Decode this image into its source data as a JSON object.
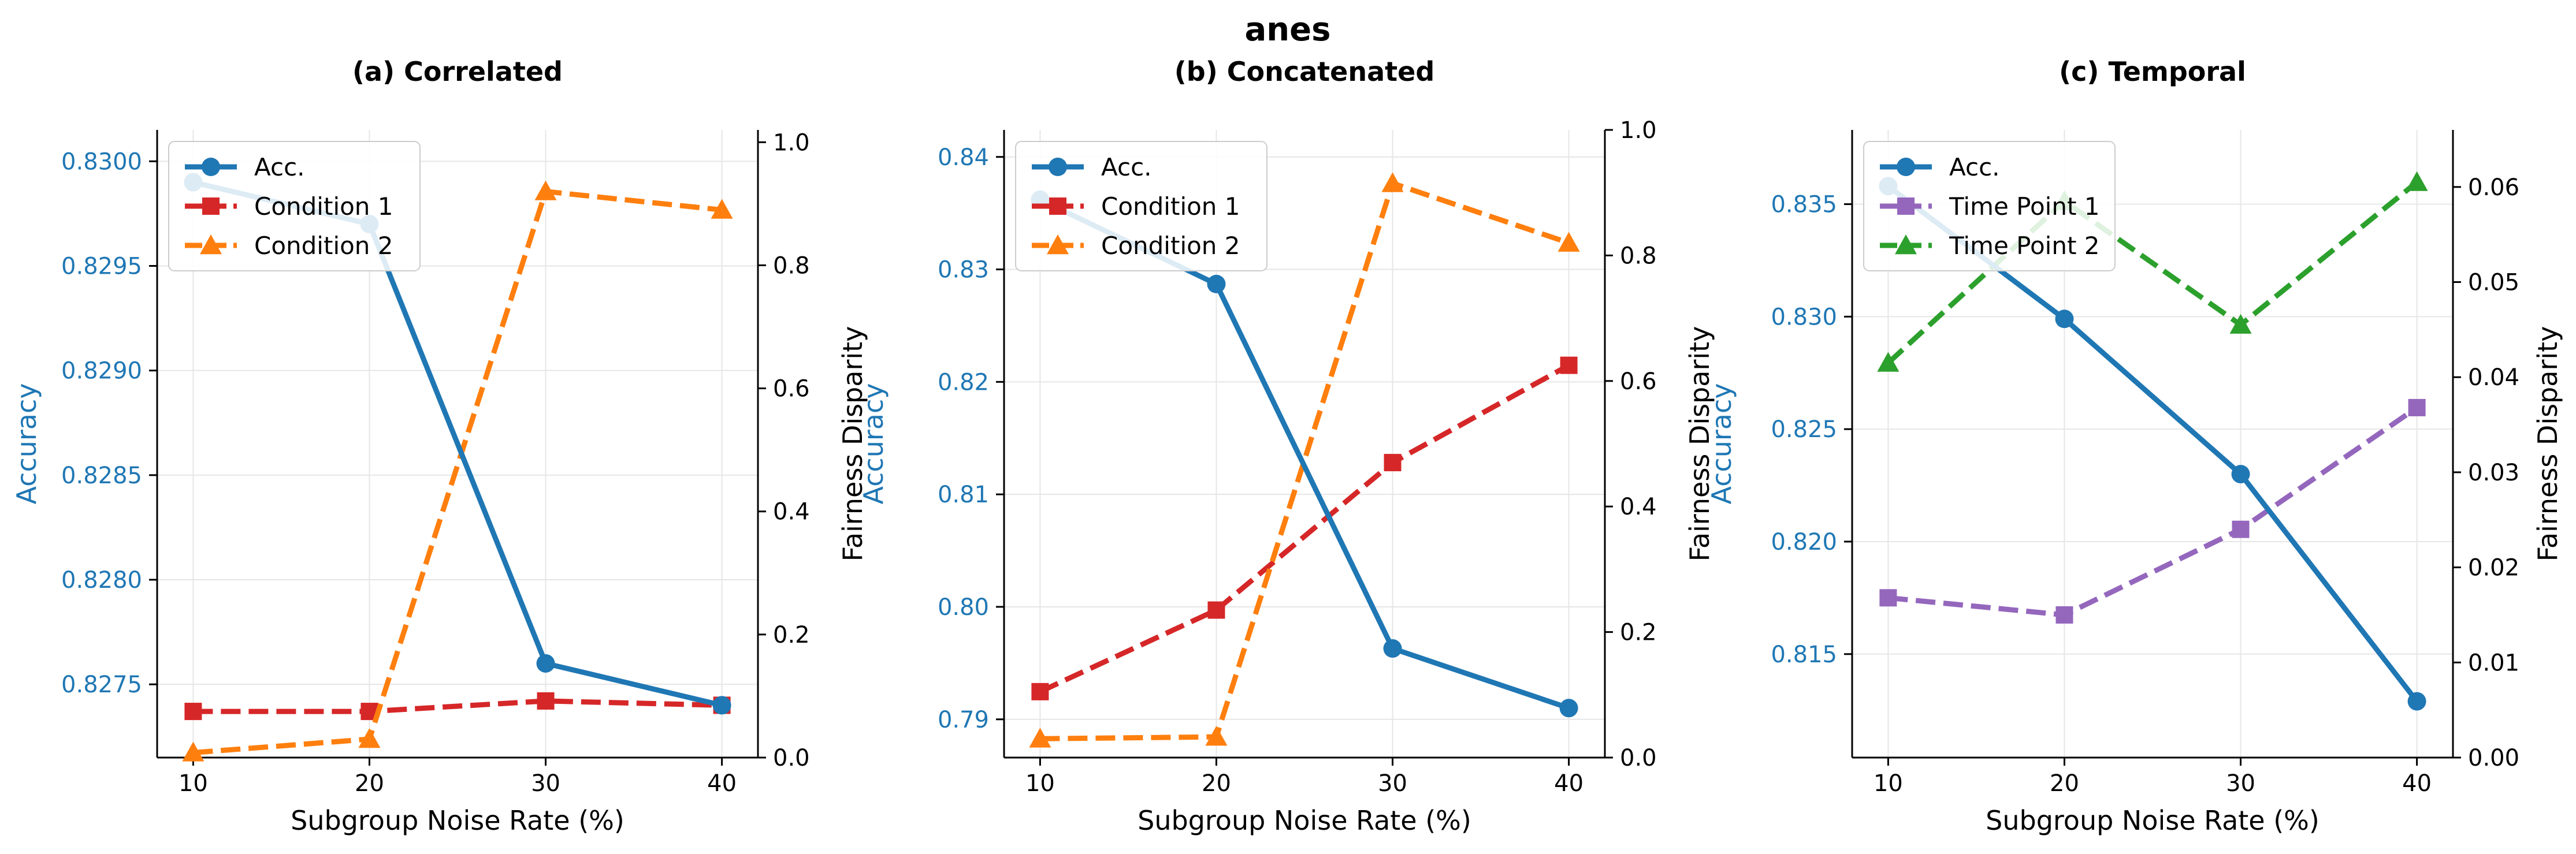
{
  "figure_title": "anes",
  "colors": {
    "accuracy": "#1f77b4",
    "condition1": "#d62728",
    "condition2": "#ff7f0e",
    "timepoint1": "#9467bd",
    "timepoint2": "#2ca02c",
    "grid": "#e6e6e6",
    "axis": "#000000"
  },
  "chart_data": [
    {
      "type": "line",
      "title": "(a) Correlated",
      "xlabel": "Subgroup Noise Rate (%)",
      "ylabel": "Accuracy",
      "y2label": "Fairness Disparity",
      "x": [
        10,
        20,
        30,
        40
      ],
      "x_ticks": [
        10,
        20,
        30,
        40
      ],
      "ylim": [
        82.715,
        83.015
      ],
      "y_ticks": [
        82.75,
        82.8,
        82.85,
        82.9,
        82.95,
        83.0
      ],
      "y_tick_labels": [
        "0.8275",
        "0.8280",
        "0.8285",
        "0.8290",
        "0.8295",
        "0.8300"
      ],
      "y2lim": [
        0.0,
        1.02
      ],
      "y2_ticks": [
        0.0,
        0.2,
        0.4,
        0.6,
        0.8,
        1.0
      ],
      "y2_tick_labels": [
        "0.0",
        "0.2",
        "0.4",
        "0.6",
        "0.8",
        "1.0"
      ],
      "legend_position": "top-left",
      "grid": true,
      "series": [
        {
          "name": "Acc.",
          "axis": "left",
          "color_key": "accuracy",
          "marker": "circle",
          "dashed": false,
          "values": [
            82.99,
            82.97,
            82.76,
            82.74
          ]
        },
        {
          "name": "Condition 1",
          "axis": "right",
          "color_key": "condition1",
          "marker": "square",
          "dashed": true,
          "values": [
            0.075,
            0.075,
            0.092,
            0.085
          ]
        },
        {
          "name": "Condition 2",
          "axis": "right",
          "color_key": "condition2",
          "marker": "triangle",
          "dashed": true,
          "values": [
            0.008,
            0.03,
            0.92,
            0.89
          ]
        }
      ]
    },
    {
      "type": "line",
      "title": "(b) Concatenated",
      "xlabel": "Subgroup Noise Rate (%)",
      "ylabel": "Accuracy",
      "y2label": "Fairness Disparity",
      "x": [
        10,
        20,
        30,
        40
      ],
      "x_ticks": [
        10,
        20,
        30,
        40
      ],
      "ylim": [
        78.66,
        84.24
      ],
      "y_ticks": [
        79,
        80,
        81,
        82,
        83,
        84
      ],
      "y_tick_labels": [
        "0.79",
        "0.80",
        "0.81",
        "0.82",
        "0.83",
        "0.84"
      ],
      "y2lim": [
        0.0,
        1.0
      ],
      "y2_ticks": [
        0.0,
        0.2,
        0.4,
        0.6,
        0.8,
        1.0
      ],
      "y2_tick_labels": [
        "0.0",
        "0.2",
        "0.4",
        "0.6",
        "0.8",
        "1.0"
      ],
      "legend_position": "top-left",
      "grid": true,
      "series": [
        {
          "name": "Acc.",
          "axis": "left",
          "color_key": "accuracy",
          "marker": "circle",
          "dashed": false,
          "values": [
            83.62,
            82.87,
            79.63,
            79.1
          ]
        },
        {
          "name": "Condition 1",
          "axis": "right",
          "color_key": "condition1",
          "marker": "square",
          "dashed": true,
          "values": [
            0.105,
            0.235,
            0.47,
            0.625
          ]
        },
        {
          "name": "Condition 2",
          "axis": "right",
          "color_key": "condition2",
          "marker": "triangle",
          "dashed": true,
          "values": [
            0.03,
            0.033,
            0.915,
            0.82
          ]
        }
      ]
    },
    {
      "type": "line",
      "title": "(c) Temporal",
      "xlabel": "Subgroup Noise Rate (%)",
      "ylabel": "Accuracy",
      "y2label": "Fairness Disparity",
      "x": [
        10,
        20,
        30,
        40
      ],
      "x_ticks": [
        10,
        20,
        30,
        40
      ],
      "ylim": [
        81.04,
        83.83
      ],
      "y_ticks": [
        81.5,
        82.0,
        82.5,
        83.0,
        83.5
      ],
      "y_tick_labels": [
        "0.815",
        "0.820",
        "0.825",
        "0.830",
        "0.835"
      ],
      "y2lim": [
        0.0,
        0.066
      ],
      "y2_ticks": [
        0.0,
        0.01,
        0.02,
        0.03,
        0.04,
        0.05,
        0.06
      ],
      "y2_tick_labels": [
        "0.00",
        "0.01",
        "0.02",
        "0.03",
        "0.04",
        "0.05",
        "0.06"
      ],
      "legend_position": "top-left",
      "grid": true,
      "series": [
        {
          "name": "Acc.",
          "axis": "left",
          "color_key": "accuracy",
          "marker": "circle",
          "dashed": false,
          "values": [
            83.58,
            82.99,
            82.3,
            81.29
          ]
        },
        {
          "name": "Time Point 1",
          "axis": "right",
          "color_key": "timepoint1",
          "marker": "square",
          "dashed": true,
          "values": [
            0.0168,
            0.015,
            0.024,
            0.0368
          ]
        },
        {
          "name": "Time Point 2",
          "axis": "right",
          "color_key": "timepoint2",
          "marker": "triangle",
          "dashed": true,
          "values": [
            0.0415,
            0.0585,
            0.0455,
            0.0605
          ]
        }
      ]
    }
  ]
}
